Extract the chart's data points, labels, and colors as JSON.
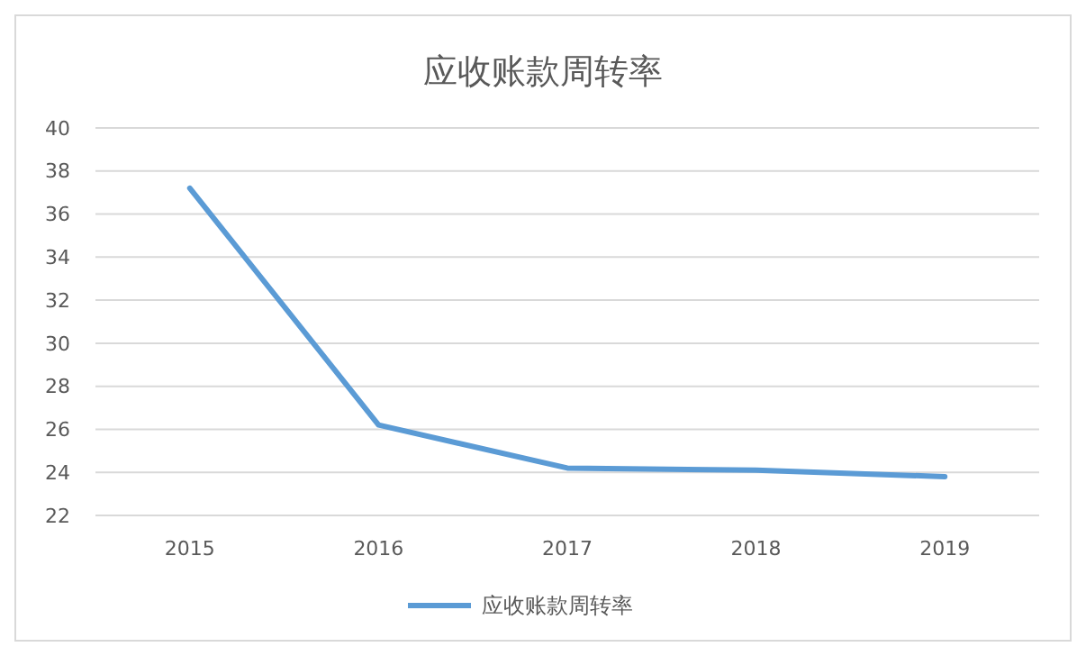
{
  "chart_data": {
    "type": "line",
    "title": "应收账款周转率",
    "categories": [
      "2015",
      "2016",
      "2017",
      "2018",
      "2019"
    ],
    "series": [
      {
        "name": "应收账款周转率",
        "color": "#5b9bd5",
        "values": [
          37.2,
          26.2,
          24.2,
          24.1,
          23.8
        ]
      }
    ],
    "ylim": [
      22,
      40
    ],
    "yticks": [
      22,
      24,
      26,
      28,
      30,
      32,
      34,
      36,
      38,
      40
    ],
    "grid": "y",
    "legend": "bottom",
    "marker": "none",
    "line_style": "solid"
  }
}
